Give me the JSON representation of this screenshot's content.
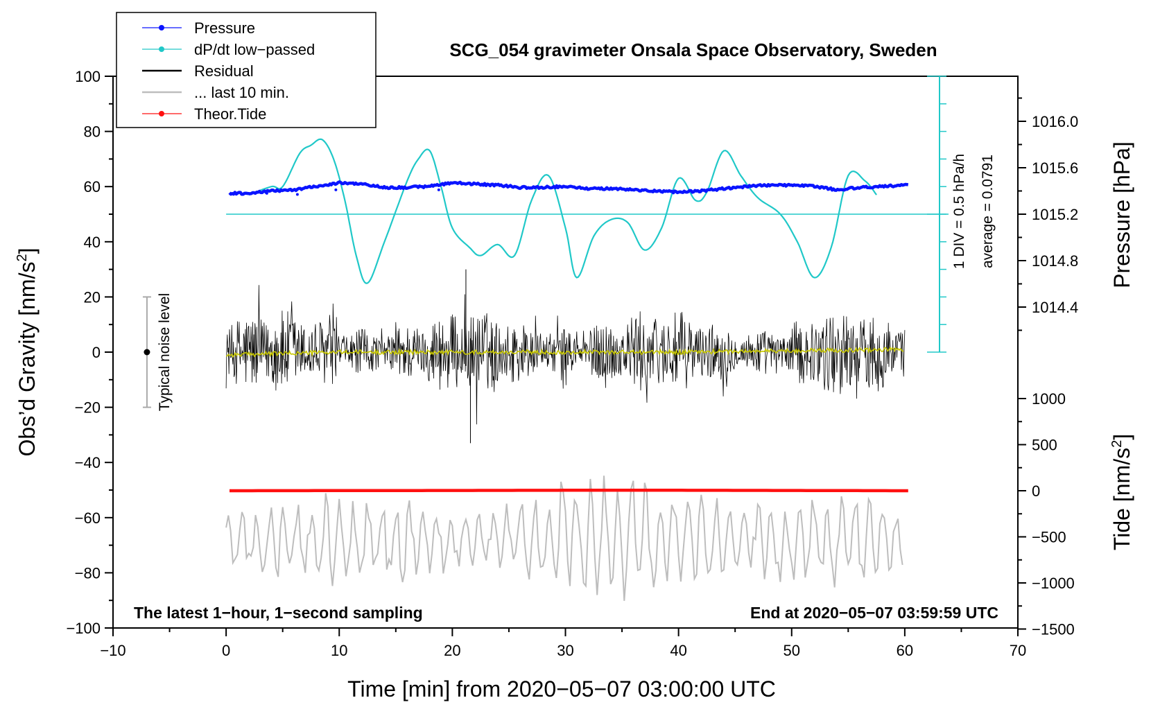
{
  "chart_data": {
    "type": "line",
    "title": "SCG_054 gravimeter Onsala Space Observatory, Sweden",
    "xlabel": "Time [min] from 2020−05−07 03:00:00 UTC",
    "ylabel_left": "Obs’d Gravity [nm/s",
    "ylabel_left_sup": "2",
    "ylabel_left_close": "]",
    "ylabel_right_pressure": "Pressure [hPa]",
    "ylabel_right_tide": "Tide [nm/s",
    "ylabel_right_tide_sup": "2",
    "ylabel_right_tide_close": "]",
    "xlim": [
      -10,
      70
    ],
    "ylim_left": [
      -100,
      100
    ],
    "x_ticks": [
      "−10",
      "0",
      "10",
      "20",
      "30",
      "40",
      "50",
      "60",
      "70"
    ],
    "y_ticks_left": [
      "−100",
      "−80",
      "−60",
      "−40",
      "−20",
      "0",
      "20",
      "40",
      "60",
      "80",
      "100"
    ],
    "pressure_axis": {
      "range_hpa": [
        1013.6,
        1016.4
      ],
      "ticks": [
        "1016.0",
        "1015.6",
        "1015.2",
        "1014.8",
        "1014.4"
      ],
      "tick_values": [
        1016.0,
        1015.6,
        1015.2,
        1014.8,
        1014.4
      ]
    },
    "tide_axis": {
      "range_nm_s2": [
        -1500,
        1500
      ],
      "ticks": [
        "1000",
        "500",
        "0",
        "−500",
        "−1000",
        "−1500"
      ],
      "tick_values": [
        1000,
        500,
        0,
        -500,
        -1000,
        -1500
      ]
    },
    "dpdt_scale": {
      "div_label": "1 DIV = 0.5 hPa/h",
      "average_label": "average = 0.0791",
      "average_value": 0.0791
    },
    "noise_bar": {
      "label": "Typical noise level",
      "x": -7,
      "center": 0,
      "half_range": 20
    },
    "annotation_left": "The latest 1−hour, 1−second sampling",
    "annotation_right": "End at 2020−05−07 03:59:59 UTC",
    "legend": [
      {
        "label": "Pressure",
        "color": "#0a14ff",
        "marker": true
      },
      {
        "label": "dP/dt low−passed",
        "color": "#20c8c8",
        "marker": true
      },
      {
        "label": "Residual",
        "color": "#000000",
        "marker": false
      },
      {
        "label": "... last 10 min.",
        "color": "#bdbdbd",
        "marker": false
      },
      {
        "label": "Theor.Tide",
        "color": "#ff1010",
        "marker": true
      }
    ],
    "series": [
      {
        "name": "Pressure",
        "units": "hPa",
        "color": "#0a14ff",
        "x": [
          0,
          2,
          4,
          6,
          8,
          10,
          12,
          14,
          16,
          18,
          20,
          22,
          24,
          26,
          28,
          30,
          32,
          34,
          36,
          38,
          40,
          42,
          44,
          46,
          48,
          50,
          52,
          54,
          56,
          58,
          60
        ],
        "values": [
          1015.38,
          1015.38,
          1015.4,
          1015.41,
          1015.44,
          1015.47,
          1015.46,
          1015.43,
          1015.43,
          1015.44,
          1015.47,
          1015.46,
          1015.45,
          1015.43,
          1015.43,
          1015.44,
          1015.42,
          1015.42,
          1015.41,
          1015.4,
          1015.39,
          1015.4,
          1015.42,
          1015.44,
          1015.45,
          1015.45,
          1015.44,
          1015.41,
          1015.43,
          1015.44,
          1015.45
        ]
      },
      {
        "name": "dP/dt low−passed",
        "units": "gravity-axis units",
        "color": "#20c8c8",
        "x": [
          2,
          4,
          5,
          6.5,
          7.5,
          8.5,
          9.5,
          10.5,
          11.5,
          12.5,
          14,
          16,
          17,
          18,
          19,
          20,
          21.5,
          22.5,
          24,
          25.5,
          27,
          28.5,
          30,
          31,
          32.5,
          34,
          35.5,
          37,
          38.5,
          40,
          41.5,
          42.5,
          44,
          45.5,
          47,
          49,
          50.5,
          52,
          53.5,
          55,
          56.5,
          57.5
        ],
        "values": [
          57,
          60,
          60,
          72,
          75,
          77,
          70,
          55,
          35,
          25,
          40,
          62,
          70,
          73,
          60,
          45,
          38,
          35,
          39,
          35,
          55,
          64,
          45,
          27,
          42,
          48,
          47,
          37,
          45,
          63,
          55,
          58,
          73,
          64,
          56,
          50,
          40,
          27,
          38,
          64,
          62,
          57
        ]
      },
      {
        "name": "Residual",
        "units": "nm/s2",
        "color": "#000000",
        "x_range": [
          0,
          60
        ],
        "typical_amplitude": 12,
        "extremes": {
          "max": 30,
          "min": -33
        }
      },
      {
        "name": "Residual smoothed",
        "units": "nm/s2",
        "color": "#c8c800",
        "x": [
          0,
          10,
          20,
          30,
          40,
          50,
          60
        ],
        "values": [
          -1,
          0,
          0,
          0,
          0,
          0.5,
          1
        ]
      },
      {
        "name": "... last 10 min.",
        "units": "nm/s2",
        "color": "#bdbdbd",
        "x_range": [
          0,
          60
        ],
        "center": -68,
        "range": [
          -92,
          -37
        ]
      },
      {
        "name": "Theor.Tide",
        "units": "nm/s2",
        "color": "#ff1010",
        "x": [
          0,
          20,
          30,
          40,
          50,
          60
        ],
        "values": [
          0,
          3,
          5,
          5,
          3,
          0
        ]
      }
    ]
  }
}
